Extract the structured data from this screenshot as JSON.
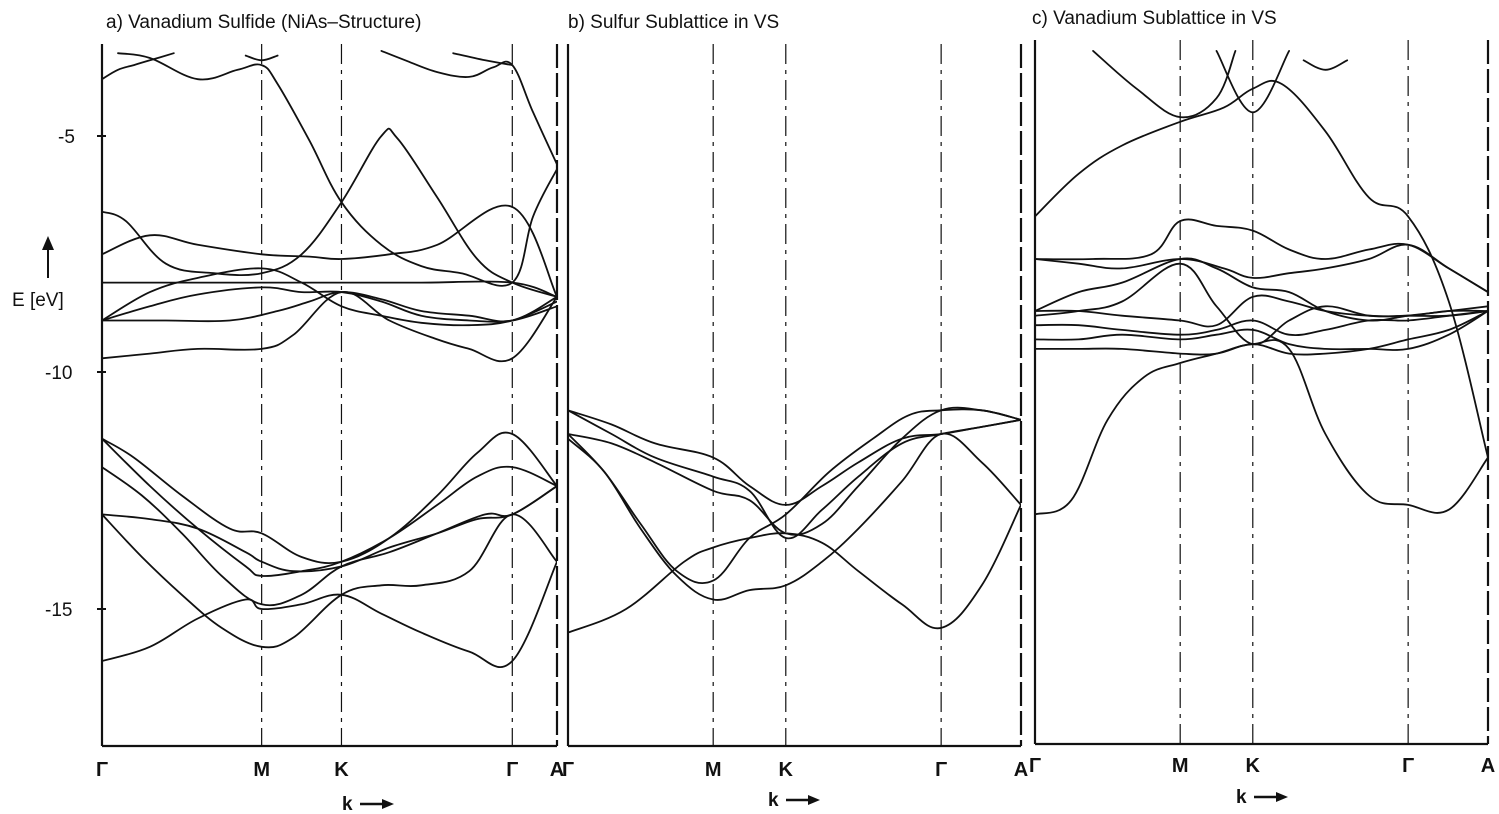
{
  "chart_data": [
    {
      "type": "line",
      "title": "a) Vanadium Sulfide (NiAs–Structure)",
      "xlabel": "k",
      "ylabel": "E [eV]",
      "ylim": [
        -17.8,
        -3.2
      ],
      "y_ticks": [
        "-5",
        "-10",
        "-15"
      ],
      "y_tick_values": [
        -5,
        -10,
        -15
      ],
      "x_points": [
        "Γ",
        "M",
        "K",
        "Γ",
        "A"
      ],
      "x_point_positions": [
        0,
        1,
        1.5,
        2.57,
        2.85
      ],
      "grid": false,
      "series": [
        {
          "x": [
            0,
            0.1,
            0.2,
            0.3,
            0.45
          ],
          "y": [
            -3.8,
            -3.6,
            -3.5,
            -3.4,
            -3.25
          ]
        },
        {
          "x": [
            0.1,
            0.3,
            0.6,
            0.85,
            1.0,
            1.1,
            1.3,
            1.5,
            1.75,
            2.0,
            2.25,
            2.57,
            2.7,
            2.85
          ],
          "y": [
            -3.25,
            -3.35,
            -3.8,
            -3.6,
            -3.5,
            -3.9,
            -5.1,
            -6.4,
            -7.3,
            -7.75,
            -7.9,
            -8.1,
            -6.7,
            -5.7
          ]
        },
        {
          "x": [
            0.9,
            1.0,
            1.1
          ],
          "y": [
            -3.3,
            -3.4,
            -3.3
          ]
        },
        {
          "x": [
            1.75,
            1.9,
            2.1,
            2.3,
            2.45,
            2.57,
            2.7,
            2.85
          ],
          "y": [
            -3.2,
            -3.4,
            -3.65,
            -3.75,
            -3.55,
            -3.5,
            -4.5,
            -5.6
          ]
        },
        {
          "x": [
            2.2,
            2.4,
            2.57
          ],
          "y": [
            -3.25,
            -3.4,
            -3.5
          ]
        },
        {
          "x": [
            0,
            0.15,
            0.4,
            0.7,
            1.0,
            1.25,
            1.5,
            1.75,
            1.85,
            2.1,
            2.35,
            2.57,
            2.85
          ],
          "y": [
            -6.6,
            -6.8,
            -7.7,
            -7.9,
            -7.9,
            -7.5,
            -6.4,
            -5.0,
            -5.05,
            -6.3,
            -7.6,
            -8.1,
            -8.4
          ]
        },
        {
          "x": [
            0,
            0.3,
            0.6,
            1.0,
            1.3,
            1.5,
            1.8,
            2.1,
            2.57,
            2.85
          ],
          "y": [
            -7.5,
            -7.1,
            -7.3,
            -7.5,
            -7.55,
            -7.6,
            -7.5,
            -7.3,
            -6.5,
            -8.4
          ]
        },
        {
          "x": [
            0,
            0.5,
            1.0,
            1.5,
            2.0,
            2.57,
            2.85
          ],
          "y": [
            -8.1,
            -8.1,
            -8.1,
            -8.1,
            -8.1,
            -8.1,
            -8.4
          ]
        },
        {
          "x": [
            0,
            0.3,
            0.6,
            1.0,
            1.25,
            1.5,
            1.75,
            2.0,
            2.3,
            2.57,
            2.85
          ],
          "y": [
            -8.9,
            -8.3,
            -8.0,
            -7.8,
            -8.1,
            -8.6,
            -8.8,
            -8.95,
            -9.0,
            -8.9,
            -8.5
          ]
        },
        {
          "x": [
            0,
            0.3,
            0.6,
            1.0,
            1.25,
            1.5,
            1.75,
            2.0,
            2.3,
            2.57,
            2.85
          ],
          "y": [
            -8.9,
            -8.6,
            -8.35,
            -8.2,
            -8.3,
            -8.3,
            -8.5,
            -8.8,
            -8.9,
            -8.9,
            -8.6
          ]
        },
        {
          "x": [
            0,
            0.4,
            0.8,
            1.1,
            1.3,
            1.5,
            1.75,
            2.0,
            2.3,
            2.57,
            2.85
          ],
          "y": [
            -8.9,
            -8.9,
            -8.9,
            -8.7,
            -8.5,
            -8.3,
            -8.45,
            -8.7,
            -8.8,
            -8.9,
            -8.4
          ]
        },
        {
          "x": [
            0,
            0.3,
            0.6,
            1.0,
            1.2,
            1.5,
            1.8,
            2.1,
            2.3,
            2.57,
            2.85
          ],
          "y": [
            -9.7,
            -9.6,
            -9.5,
            -9.5,
            -9.2,
            -8.3,
            -8.9,
            -9.3,
            -9.5,
            -9.7,
            -8.4
          ]
        },
        {
          "x": [
            0,
            0.2,
            0.5,
            0.8,
            1.0,
            1.25,
            1.5,
            1.8,
            2.1,
            2.35,
            2.57,
            2.85
          ],
          "y": [
            -11.4,
            -11.8,
            -12.6,
            -13.3,
            -13.4,
            -13.9,
            -14.0,
            -13.5,
            -12.6,
            -11.7,
            -11.3,
            -12.4
          ]
        },
        {
          "x": [
            0,
            0.3,
            0.6,
            0.9,
            1.0,
            1.25,
            1.5,
            1.8,
            2.1,
            2.35,
            2.57,
            2.85
          ],
          "y": [
            -11.4,
            -12.4,
            -13.3,
            -14.1,
            -14.3,
            -14.2,
            -14.0,
            -13.5,
            -12.8,
            -12.2,
            -12.0,
            -12.4
          ]
        },
        {
          "x": [
            0,
            0.25,
            0.5,
            0.75,
            1.0,
            1.25,
            1.5,
            1.8,
            2.1,
            2.4,
            2.57,
            2.85
          ],
          "y": [
            -12.0,
            -12.6,
            -13.4,
            -14.3,
            -14.9,
            -14.7,
            -14.1,
            -13.8,
            -13.4,
            -13.0,
            -13.0,
            -12.4
          ]
        },
        {
          "x": [
            0,
            0.3,
            0.6,
            0.9,
            1.0,
            1.2,
            1.5,
            1.8,
            2.1,
            2.35,
            2.57,
            2.85
          ],
          "y": [
            -13.0,
            -13.1,
            -13.3,
            -13.8,
            -14.0,
            -14.2,
            -14.1,
            -13.7,
            -13.4,
            -13.1,
            -13.0,
            -12.4
          ]
        },
        {
          "x": [
            0,
            0.25,
            0.5,
            0.75,
            1.0,
            1.2,
            1.5,
            1.75,
            2.0,
            2.3,
            2.57,
            2.85
          ],
          "y": [
            -13.0,
            -13.9,
            -14.7,
            -15.4,
            -15.8,
            -15.6,
            -14.7,
            -14.5,
            -14.5,
            -14.2,
            -13.0,
            -14.0
          ]
        },
        {
          "x": [
            0,
            0.3,
            0.6,
            0.9,
            1.0,
            1.25,
            1.5,
            1.75,
            2.0,
            2.3,
            2.57,
            2.85
          ],
          "y": [
            -16.1,
            -15.8,
            -15.2,
            -14.8,
            -15.0,
            -14.9,
            -14.7,
            -15.1,
            -15.5,
            -15.9,
            -16.1,
            -14.0
          ]
        }
      ]
    },
    {
      "type": "line",
      "title": "b) Sulfur Sublattice in VS",
      "xlabel": "k",
      "x_points": [
        "Γ",
        "M",
        "K",
        "Γ",
        "A"
      ],
      "x_point_positions": [
        0,
        1,
        1.5,
        2.57,
        3.12
      ],
      "grid": false,
      "series": [
        {
          "x": [
            0,
            0.3,
            0.6,
            1.0,
            1.25,
            1.5,
            1.75,
            2.0,
            2.3,
            2.57,
            2.85,
            3.12
          ],
          "y": [
            -10.8,
            -11.1,
            -11.5,
            -11.8,
            -12.4,
            -12.8,
            -12.4,
            -11.9,
            -11.4,
            -11.3,
            -11.15,
            -11.0
          ]
        },
        {
          "x": [
            0,
            0.3,
            0.6,
            1.0,
            1.25,
            1.5,
            1.75,
            2.0,
            2.3,
            2.57,
            2.85,
            3.12
          ],
          "y": [
            -10.8,
            -11.3,
            -11.8,
            -12.2,
            -12.5,
            -13.5,
            -12.9,
            -12.2,
            -11.5,
            -11.3,
            -11.15,
            -11.0
          ]
        },
        {
          "x": [
            0,
            0.3,
            0.6,
            1.0,
            1.25,
            1.5,
            1.75,
            2.0,
            2.3,
            2.57,
            2.85,
            3.12
          ],
          "y": [
            -11.3,
            -11.5,
            -11.9,
            -12.5,
            -12.7,
            -13.4,
            -13.2,
            -12.4,
            -11.4,
            -10.8,
            -10.8,
            -11.0
          ]
        },
        {
          "x": [
            0,
            0.25,
            0.5,
            0.75,
            1.0,
            1.25,
            1.5,
            1.8,
            2.1,
            2.35,
            2.57,
            2.85,
            3.12
          ],
          "y": [
            -11.3,
            -12.1,
            -13.2,
            -14.2,
            -14.4,
            -13.5,
            -13.0,
            -12.1,
            -11.4,
            -10.9,
            -10.8,
            -10.8,
            -11.0
          ]
        },
        {
          "x": [
            0,
            0.25,
            0.5,
            0.75,
            1.0,
            1.25,
            1.5,
            1.75,
            2.0,
            2.3,
            2.57,
            2.85,
            3.12
          ],
          "y": [
            -11.4,
            -12.1,
            -13.3,
            -14.3,
            -14.8,
            -14.6,
            -14.5,
            -14.0,
            -13.3,
            -12.3,
            -11.3,
            -11.9,
            -12.8
          ]
        },
        {
          "x": [
            0,
            0.4,
            0.8,
            1.0,
            1.25,
            1.5,
            1.75,
            2.0,
            2.3,
            2.57,
            2.85,
            3.12
          ],
          "y": [
            -15.5,
            -15.0,
            -14.0,
            -13.7,
            -13.5,
            -13.4,
            -13.6,
            -14.2,
            -14.9,
            -15.4,
            -14.5,
            -12.8
          ]
        }
      ]
    },
    {
      "type": "line",
      "title": "c) Vanadium Sublattice in VS",
      "xlabel": "k",
      "x_points": [
        "Γ",
        "M",
        "K",
        "Γ",
        "A"
      ],
      "x_point_positions": [
        0,
        1,
        1.5,
        2.57,
        3.12
      ],
      "grid": false,
      "series": [
        {
          "x": [
            0.4,
            0.7,
            1.0,
            1.25,
            1.38
          ],
          "y": [
            -3.2,
            -4.0,
            -4.6,
            -4.2,
            -3.2
          ]
        },
        {
          "x": [
            1.25,
            1.5,
            1.75
          ],
          "y": [
            -3.2,
            -4.5,
            -3.2
          ]
        },
        {
          "x": [
            1.85,
            2.0,
            2.15
          ],
          "y": [
            -3.4,
            -3.6,
            -3.4
          ]
        },
        {
          "x": [
            0,
            0.3,
            0.6,
            1.0,
            1.3,
            1.5,
            1.7,
            2.0,
            2.3,
            2.57,
            2.85,
            3.12
          ],
          "y": [
            -6.7,
            -5.8,
            -5.2,
            -4.7,
            -4.4,
            -4.0,
            -3.9,
            -4.9,
            -6.3,
            -6.7,
            -8.5,
            -11.8
          ]
        },
        {
          "x": [
            0,
            0.4,
            0.8,
            1.0,
            1.25,
            1.5,
            1.75,
            2.0,
            2.3,
            2.57,
            2.85,
            3.12
          ],
          "y": [
            -7.6,
            -7.6,
            -7.5,
            -6.8,
            -6.9,
            -7.0,
            -7.4,
            -7.6,
            -7.4,
            -7.3,
            -7.8,
            -8.3
          ]
        },
        {
          "x": [
            0,
            0.3,
            0.6,
            1.0,
            1.3,
            1.5,
            1.75,
            2.0,
            2.3,
            2.57,
            2.85,
            3.12
          ],
          "y": [
            -7.6,
            -7.7,
            -7.8,
            -7.6,
            -7.8,
            -8.0,
            -7.9,
            -7.8,
            -7.6,
            -7.3,
            -7.8,
            -8.3
          ]
        },
        {
          "x": [
            0,
            0.3,
            0.6,
            1.0,
            1.25,
            1.5,
            1.75,
            2.0,
            2.3,
            2.57,
            2.85,
            3.12
          ],
          "y": [
            -8.7,
            -8.3,
            -8.1,
            -7.6,
            -7.8,
            -8.2,
            -8.3,
            -8.7,
            -8.9,
            -8.8,
            -8.7,
            -8.6
          ]
        },
        {
          "x": [
            0,
            0.3,
            0.6,
            1.0,
            1.25,
            1.5,
            1.75,
            2.0,
            2.3,
            2.57,
            2.85,
            3.12
          ],
          "y": [
            -8.8,
            -8.7,
            -8.5,
            -7.7,
            -8.6,
            -9.4,
            -8.9,
            -8.6,
            -8.8,
            -8.8,
            -8.8,
            -8.7
          ]
        },
        {
          "x": [
            0,
            0.3,
            0.6,
            1.0,
            1.25,
            1.5,
            1.75,
            2.0,
            2.3,
            2.57,
            2.85,
            3.12
          ],
          "y": [
            -8.7,
            -8.7,
            -8.8,
            -8.9,
            -9.0,
            -8.4,
            -8.5,
            -8.7,
            -8.8,
            -8.8,
            -8.7,
            -8.7
          ]
        },
        {
          "x": [
            0,
            0.3,
            0.6,
            1.0,
            1.25,
            1.5,
            1.75,
            2.0,
            2.3,
            2.57,
            2.85,
            3.12
          ],
          "y": [
            -9.0,
            -9.0,
            -9.1,
            -9.2,
            -9.1,
            -8.9,
            -9.2,
            -9.1,
            -8.9,
            -8.9,
            -8.8,
            -8.7
          ]
        },
        {
          "x": [
            0,
            0.3,
            0.6,
            1.0,
            1.25,
            1.5,
            1.75,
            2.0,
            2.3,
            2.57,
            2.85,
            3.12
          ],
          "y": [
            -9.3,
            -9.3,
            -9.2,
            -9.3,
            -9.2,
            -9.1,
            -9.4,
            -9.5,
            -9.5,
            -9.5,
            -9.2,
            -8.7
          ]
        },
        {
          "x": [
            0,
            0.3,
            0.6,
            1.0,
            1.25,
            1.5,
            1.75,
            2.0,
            2.3,
            2.57,
            2.85,
            3.12
          ],
          "y": [
            -9.5,
            -9.5,
            -9.5,
            -9.6,
            -9.6,
            -9.4,
            -9.6,
            -9.6,
            -9.5,
            -9.3,
            -9.1,
            -8.7
          ]
        },
        {
          "x": [
            0,
            0.25,
            0.5,
            0.75,
            1.0,
            1.25,
            1.5,
            1.75,
            2.0,
            2.3,
            2.57,
            2.85,
            3.12
          ],
          "y": [
            -13.0,
            -12.7,
            -11.0,
            -10.1,
            -9.8,
            -9.6,
            -9.4,
            -9.5,
            -11.3,
            -12.6,
            -12.8,
            -12.9,
            -11.8
          ]
        }
      ]
    }
  ]
}
